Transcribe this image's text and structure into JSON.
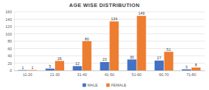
{
  "chart_data": {
    "type": "bar",
    "title": "AGE WISE DISTRIBUTION",
    "categories": [
      "11-20",
      "21-30",
      "31-40",
      "41-50",
      "51-60",
      "60-70",
      "71-80"
    ],
    "series": [
      {
        "name": "MALE",
        "color": "#4472c4",
        "values": [
          1,
          5,
          12,
          23,
          30,
          27,
          3
        ]
      },
      {
        "name": "FEMALE",
        "color": "#ed7d31",
        "values": [
          1,
          26,
          80,
          134,
          149,
          51,
          8
        ]
      }
    ],
    "ylim": [
      0,
      160
    ],
    "yticks": [
      0,
      20,
      40,
      60,
      80,
      100,
      120,
      140,
      160
    ],
    "grid": true,
    "data_labels": true,
    "legend": "bottom"
  }
}
